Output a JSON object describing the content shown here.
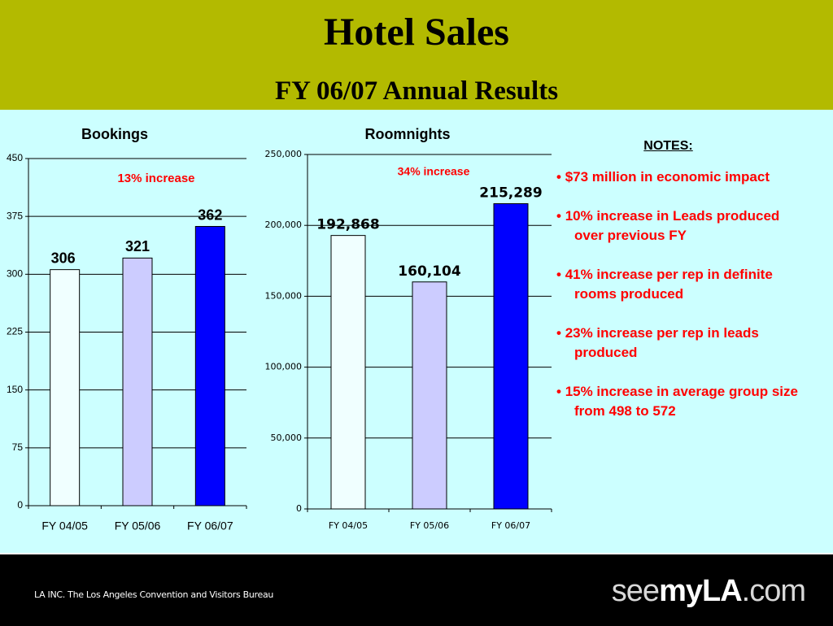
{
  "header": {
    "title": "Hotel Sales",
    "subtitle": "FY 06/07 Annual Results"
  },
  "chart_data": [
    {
      "type": "bar",
      "title": "Bookings",
      "annotation": "13% increase",
      "categories": [
        "FY 04/05",
        "FY 05/06",
        "FY 06/07"
      ],
      "values": [
        306,
        321,
        362
      ],
      "colors": [
        "#f0ffff",
        "#ccccff",
        "#0000ff"
      ],
      "ylim": [
        0,
        450
      ],
      "yticks": [
        0,
        75,
        150,
        225,
        300,
        375,
        450
      ],
      "grid": true
    },
    {
      "type": "bar",
      "title": "Roomnights",
      "annotation": "34% increase",
      "categories": [
        "FY 04/05",
        "FY 05/06",
        "FY 06/07"
      ],
      "values": [
        192868,
        160104,
        215289
      ],
      "value_labels": [
        "192,868",
        "160,104",
        "215,289"
      ],
      "colors": [
        "#f0ffff",
        "#ccccff",
        "#0000ff"
      ],
      "ylim": [
        0,
        250000
      ],
      "yticks": [
        0,
        {
          "value": 50000,
          "label": "50,000"
        },
        {
          "value": 100000,
          "label": "100,000"
        },
        {
          "value": 150000,
          "label": "150,000"
        },
        {
          "value": 200000,
          "label": "200,000"
        },
        {
          "value": 250000,
          "label": "250,000"
        }
      ],
      "grid": true
    }
  ],
  "notes": {
    "heading": "NOTES:",
    "items": [
      "$73 million in economic impact",
      "10% increase in Leads produced over previous FY",
      "41% increase per rep in definite rooms produced",
      "23% increase per rep in leads produced",
      "15% increase in average group size from 498 to 572"
    ]
  },
  "footer": {
    "credit": "LA INC. The Los Angeles Convention and Visitors Bureau",
    "logo": [
      "see",
      "my",
      "LA",
      ".com"
    ]
  }
}
